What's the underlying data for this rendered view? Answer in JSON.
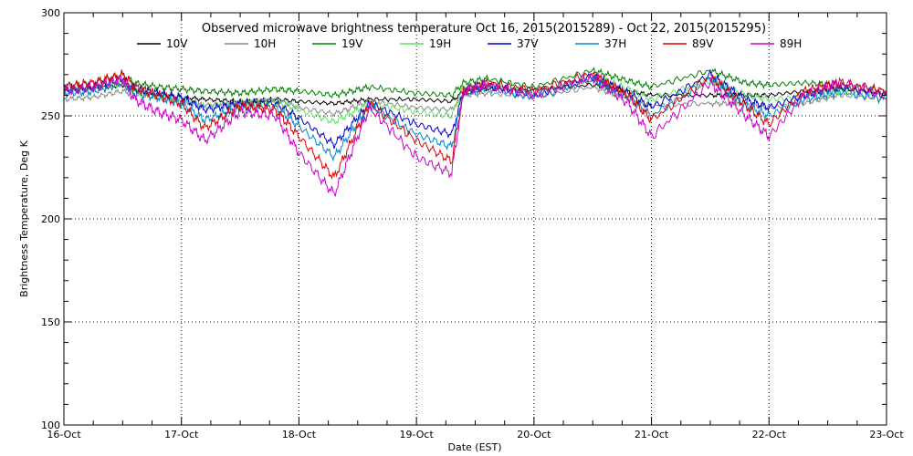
{
  "chart_data": {
    "type": "line",
    "title": "Observed microwave brightness temperature Oct 16, 2015(2015289) - Oct 22, 2015(2015295)",
    "xlabel": "Date (EST)",
    "ylabel": "Brightness Temperature, Deg K",
    "x_ticks": [
      "16-Oct",
      "17-Oct",
      "18-Oct",
      "19-Oct",
      "20-Oct",
      "21-Oct",
      "22-Oct",
      "23-Oct"
    ],
    "y_ticks": [
      100,
      150,
      200,
      250,
      300
    ],
    "xlim": [
      0,
      7
    ],
    "ylim": [
      100,
      300
    ],
    "grid": true,
    "legend_position": "top",
    "x_unit_note": "x values are days after 16-Oct",
    "series": [
      {
        "name": "10V",
        "color": "#000000",
        "x": [
          0,
          0.25,
          0.5,
          0.6,
          0.8,
          1,
          1.2,
          1.5,
          1.8,
          2,
          2.3,
          2.6,
          3,
          3.3,
          3.4,
          3.6,
          4,
          4.5,
          4.8,
          5,
          5.5,
          5.8,
          6,
          6.3,
          6.6,
          7
        ],
        "y": [
          262,
          263,
          265,
          262,
          260,
          259,
          258,
          257,
          258,
          257,
          256,
          258,
          258,
          257,
          262,
          263,
          263,
          265,
          262,
          260,
          260,
          260,
          260,
          262,
          263,
          261
        ]
      },
      {
        "name": "10H",
        "color": "#888888",
        "x": [
          0,
          0.25,
          0.5,
          0.6,
          0.8,
          1,
          1.2,
          1.5,
          1.8,
          2,
          2.3,
          2.6,
          3,
          3.3,
          3.4,
          3.6,
          4,
          4.5,
          4.8,
          5,
          5.5,
          5.8,
          6,
          6.3,
          6.6,
          7
        ],
        "y": [
          258,
          259,
          262,
          260,
          259,
          257,
          255,
          256,
          258,
          254,
          251,
          257,
          254,
          253,
          260,
          261,
          259,
          264,
          258,
          255,
          256,
          256,
          254,
          256,
          260,
          258
        ]
      },
      {
        "name": "19V",
        "color": "#008000",
        "x": [
          0,
          0.25,
          0.5,
          0.6,
          0.8,
          1,
          1.2,
          1.5,
          1.8,
          2,
          2.3,
          2.6,
          3,
          3.3,
          3.4,
          3.6,
          4,
          4.5,
          4.8,
          5,
          5.5,
          5.8,
          6,
          6.3,
          6.6,
          7
        ],
        "y": [
          265,
          266,
          270,
          266,
          264,
          263,
          262,
          261,
          263,
          262,
          260,
          264,
          261,
          260,
          266,
          268,
          264,
          272,
          267,
          264,
          272,
          266,
          265,
          266,
          265,
          262
        ]
      },
      {
        "name": "19H",
        "color": "#66dd66",
        "x": [
          0,
          0.25,
          0.5,
          0.6,
          0.8,
          1,
          1.2,
          1.5,
          1.8,
          2,
          2.3,
          2.6,
          3,
          3.3,
          3.4,
          3.6,
          4,
          4.5,
          4.8,
          5,
          5.5,
          5.8,
          6,
          6.3,
          6.6,
          7
        ],
        "y": [
          262,
          263,
          266,
          262,
          260,
          258,
          254,
          256,
          257,
          253,
          247,
          256,
          252,
          250,
          264,
          266,
          261,
          269,
          263,
          258,
          267,
          260,
          258,
          259,
          262,
          260
        ]
      },
      {
        "name": "37V",
        "color": "#0000cc",
        "x": [
          0,
          0.25,
          0.5,
          0.6,
          0.8,
          1,
          1.2,
          1.5,
          1.8,
          2,
          2.3,
          2.6,
          3,
          3.3,
          3.4,
          3.6,
          4,
          4.5,
          4.8,
          5,
          5.5,
          5.8,
          6,
          6.3,
          6.6,
          7
        ],
        "y": [
          263,
          264,
          268,
          263,
          261,
          259,
          253,
          256,
          256,
          249,
          236,
          256,
          246,
          241,
          262,
          265,
          260,
          269,
          261,
          254,
          270,
          258,
          254,
          260,
          264,
          260
        ]
      },
      {
        "name": "37H",
        "color": "#0088cc",
        "x": [
          0,
          0.25,
          0.5,
          0.6,
          0.8,
          1,
          1.2,
          1.5,
          1.8,
          2,
          2.3,
          2.6,
          3,
          3.3,
          3.4,
          3.6,
          4,
          4.5,
          4.8,
          5,
          5.5,
          5.8,
          6,
          6.3,
          6.6,
          7
        ],
        "y": [
          261,
          262,
          266,
          261,
          259,
          256,
          248,
          254,
          254,
          245,
          230,
          255,
          241,
          235,
          261,
          264,
          259,
          268,
          259,
          250,
          268,
          255,
          250,
          258,
          262,
          258
        ]
      },
      {
        "name": "89V",
        "color": "#dd0000",
        "x": [
          0,
          0.25,
          0.5,
          0.6,
          0.8,
          1,
          1.2,
          1.5,
          1.8,
          2,
          2.3,
          2.6,
          3,
          3.3,
          3.4,
          3.6,
          4,
          4.5,
          4.8,
          5,
          5.5,
          5.8,
          6,
          6.3,
          6.6,
          7
        ],
        "y": [
          264,
          266,
          270,
          264,
          260,
          256,
          244,
          255,
          253,
          240,
          220,
          256,
          238,
          228,
          262,
          266,
          262,
          270,
          260,
          248,
          269,
          255,
          246,
          262,
          266,
          262
        ]
      },
      {
        "name": "89H",
        "color": "#cc00cc",
        "x": [
          0,
          0.25,
          0.5,
          0.6,
          0.8,
          1,
          1.2,
          1.5,
          1.8,
          2,
          2.3,
          2.6,
          3,
          3.3,
          3.4,
          3.6,
          4,
          4.5,
          4.8,
          5,
          5.5,
          5.8,
          6,
          6.3,
          6.6,
          7
        ],
        "y": [
          262,
          264,
          268,
          258,
          252,
          248,
          238,
          252,
          250,
          232,
          212,
          254,
          230,
          222,
          262,
          265,
          260,
          269,
          256,
          240,
          266,
          250,
          240,
          260,
          266,
          260
        ]
      }
    ]
  }
}
